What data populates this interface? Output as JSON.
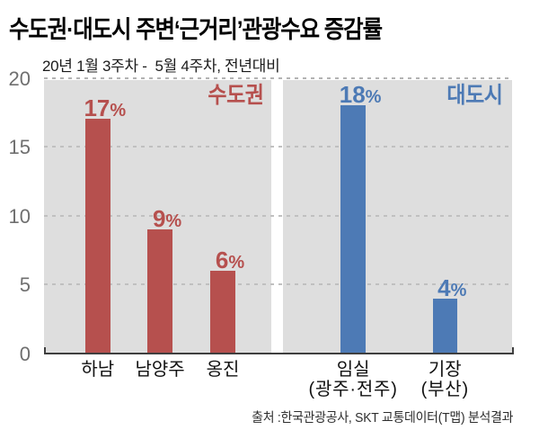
{
  "title": "수도권·대도시 주변‘근거리’관광수요 증감률",
  "subtitle": "20년 1월 3주차 -  5월 4주차, 전년대비",
  "source": "출처 :한국관광공사, SKT 교통데이터(T맵) 분석결과",
  "colors": {
    "metro_red": "#b6504e",
    "city_blue": "#4d7ab5",
    "panel_gray": "#dedede",
    "axis_dark": "#3f3f3f",
    "grid_gray": "#c0c0c0",
    "ylabel_gray": "#6f6f6f"
  },
  "chart_data": {
    "type": "bar",
    "title": "수도권·대도시 주변‘근거리’관광수요 증감률",
    "subtitle": "20년 1월 3주차 -  5월 4주차, 전년대비",
    "source": "출처 :한국관광공사, SKT 교통데이터(T맵) 분석결과",
    "xlabel": "",
    "ylabel": "",
    "ylim": [
      0,
      20
    ],
    "yticks": [
      0,
      5,
      10,
      15,
      20
    ],
    "grid": "dashed-horizontal",
    "legend_position": "top-right-inside-panels",
    "groups": [
      {
        "name": "수도권",
        "color": "#b6504e",
        "bars": [
          {
            "category": "하남",
            "value": 17,
            "label": "17%"
          },
          {
            "category": "남양주",
            "value": 9,
            "label": "9%"
          },
          {
            "category": "옹진",
            "value": 6,
            "label": "6%"
          }
        ]
      },
      {
        "name": "대도시",
        "color": "#4d7ab5",
        "bars": [
          {
            "category": "임실",
            "category_sub": "(광주·전주)",
            "value": 18,
            "label": "18%"
          },
          {
            "category": "기장",
            "category_sub": "(부산)",
            "value": 4,
            "label": "4%"
          }
        ]
      }
    ]
  }
}
